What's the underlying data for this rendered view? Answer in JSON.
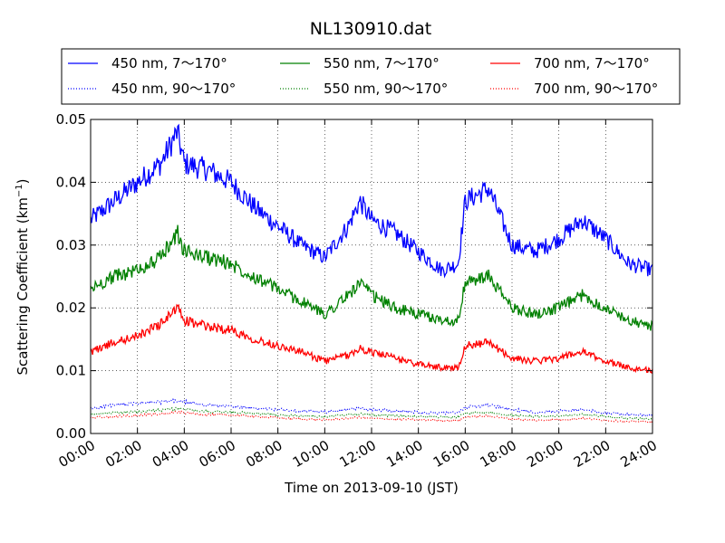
{
  "chart_data": {
    "type": "line",
    "title": "NL130910.dat",
    "xlabel": "Time on 2013-09-10 (JST)",
    "ylabel_prefix": "Scattering Coefficient (km",
    "ylabel_sup": "−1",
    "ylabel_suffix": ")",
    "xlim": [
      0,
      24
    ],
    "ylim": [
      0,
      0.05
    ],
    "x_unit": "hours (JST)",
    "x_ticks": [
      0,
      2,
      4,
      6,
      8,
      10,
      12,
      14,
      16,
      18,
      20,
      22,
      24
    ],
    "x_tick_labels": [
      "00:00",
      "02:00",
      "04:00",
      "06:00",
      "08:00",
      "10:00",
      "12:00",
      "14:00",
      "16:00",
      "18:00",
      "20:00",
      "22:00",
      "24:00"
    ],
    "y_ticks": [
      0,
      0.01,
      0.02,
      0.03,
      0.04,
      0.05
    ],
    "y_tick_labels": [
      "0.00",
      "0.01",
      "0.02",
      "0.03",
      "0.04",
      "0.05"
    ],
    "grid": true,
    "legend_position": "top, above plot",
    "legend_columns": 3,
    "x": [
      0,
      1,
      2,
      3,
      3.7,
      4,
      5,
      6,
      7,
      8,
      9,
      10,
      11,
      11.5,
      12,
      13,
      14,
      15,
      15.7,
      16,
      17,
      18,
      19,
      20,
      21,
      22,
      23,
      24
    ],
    "series": [
      {
        "name": "450 nm, 7～170°",
        "color": "#0000ff",
        "style": "solid",
        "values": [
          0.034,
          0.037,
          0.04,
          0.043,
          0.048,
          0.043,
          0.042,
          0.04,
          0.036,
          0.033,
          0.03,
          0.028,
          0.033,
          0.037,
          0.034,
          0.032,
          0.029,
          0.026,
          0.027,
          0.037,
          0.039,
          0.03,
          0.029,
          0.031,
          0.034,
          0.031,
          0.027,
          0.026
        ]
      },
      {
        "name": "450 nm, 90～170°",
        "color": "#0000ff",
        "style": "dotted",
        "values": [
          0.004,
          0.0045,
          0.0048,
          0.005,
          0.0052,
          0.005,
          0.0045,
          0.0043,
          0.004,
          0.0038,
          0.0036,
          0.0034,
          0.0038,
          0.004,
          0.0038,
          0.0036,
          0.0034,
          0.0032,
          0.0033,
          0.0042,
          0.0045,
          0.0038,
          0.0034,
          0.0036,
          0.0038,
          0.0033,
          0.003,
          0.0029
        ]
      },
      {
        "name": "550 nm, 7～170°",
        "color": "#008000",
        "style": "solid",
        "values": [
          0.023,
          0.025,
          0.026,
          0.028,
          0.032,
          0.029,
          0.028,
          0.027,
          0.025,
          0.023,
          0.021,
          0.019,
          0.022,
          0.024,
          0.022,
          0.02,
          0.019,
          0.018,
          0.018,
          0.024,
          0.025,
          0.02,
          0.019,
          0.02,
          0.022,
          0.02,
          0.018,
          0.017
        ]
      },
      {
        "name": "550 nm, 90～170°",
        "color": "#008000",
        "style": "dotted",
        "values": [
          0.003,
          0.0033,
          0.0035,
          0.0037,
          0.004,
          0.0038,
          0.0035,
          0.0034,
          0.0032,
          0.003,
          0.0028,
          0.0027,
          0.003,
          0.0031,
          0.003,
          0.0028,
          0.0027,
          0.0026,
          0.0026,
          0.0032,
          0.0034,
          0.0029,
          0.0027,
          0.0028,
          0.003,
          0.0027,
          0.0024,
          0.0023
        ]
      },
      {
        "name": "700 nm, 7～170°",
        "color": "#ff0000",
        "style": "solid",
        "values": [
          0.013,
          0.0145,
          0.0155,
          0.0175,
          0.02,
          0.018,
          0.017,
          0.0165,
          0.015,
          0.014,
          0.013,
          0.0115,
          0.0125,
          0.0135,
          0.013,
          0.012,
          0.011,
          0.0105,
          0.0105,
          0.014,
          0.0145,
          0.012,
          0.0115,
          0.012,
          0.013,
          0.0115,
          0.0105,
          0.01
        ]
      },
      {
        "name": "700 nm, 90～170°",
        "color": "#ff0000",
        "style": "dotted",
        "values": [
          0.0025,
          0.0027,
          0.0029,
          0.0031,
          0.0034,
          0.0033,
          0.003,
          0.0029,
          0.0027,
          0.0025,
          0.0023,
          0.0022,
          0.0024,
          0.0026,
          0.0024,
          0.0023,
          0.0022,
          0.0021,
          0.0021,
          0.0026,
          0.0028,
          0.0023,
          0.0021,
          0.0022,
          0.0024,
          0.0021,
          0.0019,
          0.0019
        ]
      }
    ]
  }
}
